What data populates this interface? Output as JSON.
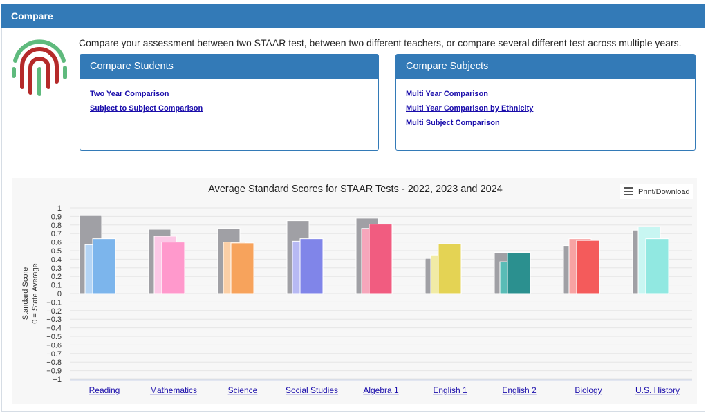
{
  "header": {
    "title": "Compare"
  },
  "description": "Compare your assessment between two STAAR test, between two different teachers, or compare several different test across multiple years.",
  "panels": [
    {
      "title": "Compare Students",
      "links": [
        "Two Year Comparison",
        "Subject to Subject Comparison"
      ]
    },
    {
      "title": "Compare Subjects",
      "links": [
        "Multi Year Comparison",
        "Multi Year Comparison by Ethnicity",
        "Multi Subject Comparison"
      ]
    }
  ],
  "print_button": "Print/Download",
  "chart_data": {
    "type": "bar",
    "title": "Average Standard Scores for STAAR Tests - 2022, 2023 and 2024",
    "ylabel": [
      "Standard Score",
      "0 = State Average"
    ],
    "categories": [
      "Reading",
      "Mathematics",
      "Science",
      "Social Studies",
      "Algebra 1",
      "English 1",
      "English 2",
      "Biology",
      "U.S. History"
    ],
    "series": [
      {
        "colors": [
          "#a0a0a5",
          "#a0a0a5",
          "#a0a0a5",
          "#a0a0a5",
          "#a0a0a5",
          "#a0a0a5",
          "#a0a0a5",
          "#a0a0a5",
          "#a0a0a5"
        ],
        "values": [
          0.91,
          0.75,
          0.76,
          0.85,
          0.88,
          0.41,
          0.48,
          0.56,
          0.74
        ]
      },
      {
        "colors": [
          "#b3d4f5",
          "#fcc8e6",
          "#fbcfa6",
          "#b7b9f3",
          "#f6a6bb",
          "#f1eba6",
          "#59bcb6",
          "#f7a3a3",
          "#c8f6f2"
        ],
        "values": [
          0.57,
          0.67,
          0.6,
          0.61,
          0.76,
          0.45,
          0.37,
          0.64,
          0.78
        ]
      },
      {
        "colors": [
          "#7cb5ec",
          "#ff99cc",
          "#f7a35c",
          "#8085e9",
          "#f15c80",
          "#e4d354",
          "#2b908f",
          "#f45b5b",
          "#91e8e1"
        ],
        "values": [
          0.64,
          0.6,
          0.59,
          0.64,
          0.81,
          0.58,
          0.48,
          0.62,
          0.64
        ]
      }
    ],
    "ylim": [
      -1,
      1
    ],
    "yticks": [
      1,
      0.9,
      0.8,
      0.7,
      0.6,
      0.5,
      0.4,
      0.3,
      0.2,
      0.1,
      0,
      {
        "value": -0.1,
        "label": "−0.1"
      },
      {
        "value": -0.2,
        "label": "−0.2"
      },
      {
        "value": -0.3,
        "label": "−0.3"
      },
      {
        "value": -0.4,
        "label": "−0.4"
      },
      {
        "value": -0.5,
        "label": "−0.5"
      },
      {
        "value": -0.6,
        "label": "−0.6"
      },
      {
        "value": -0.7,
        "label": "−0.7"
      },
      {
        "value": -0.8,
        "label": "−0.8"
      },
      {
        "value": -0.9,
        "label": "−0.9"
      },
      {
        "value": -1,
        "label": "−1"
      }
    ],
    "grid": true
  }
}
